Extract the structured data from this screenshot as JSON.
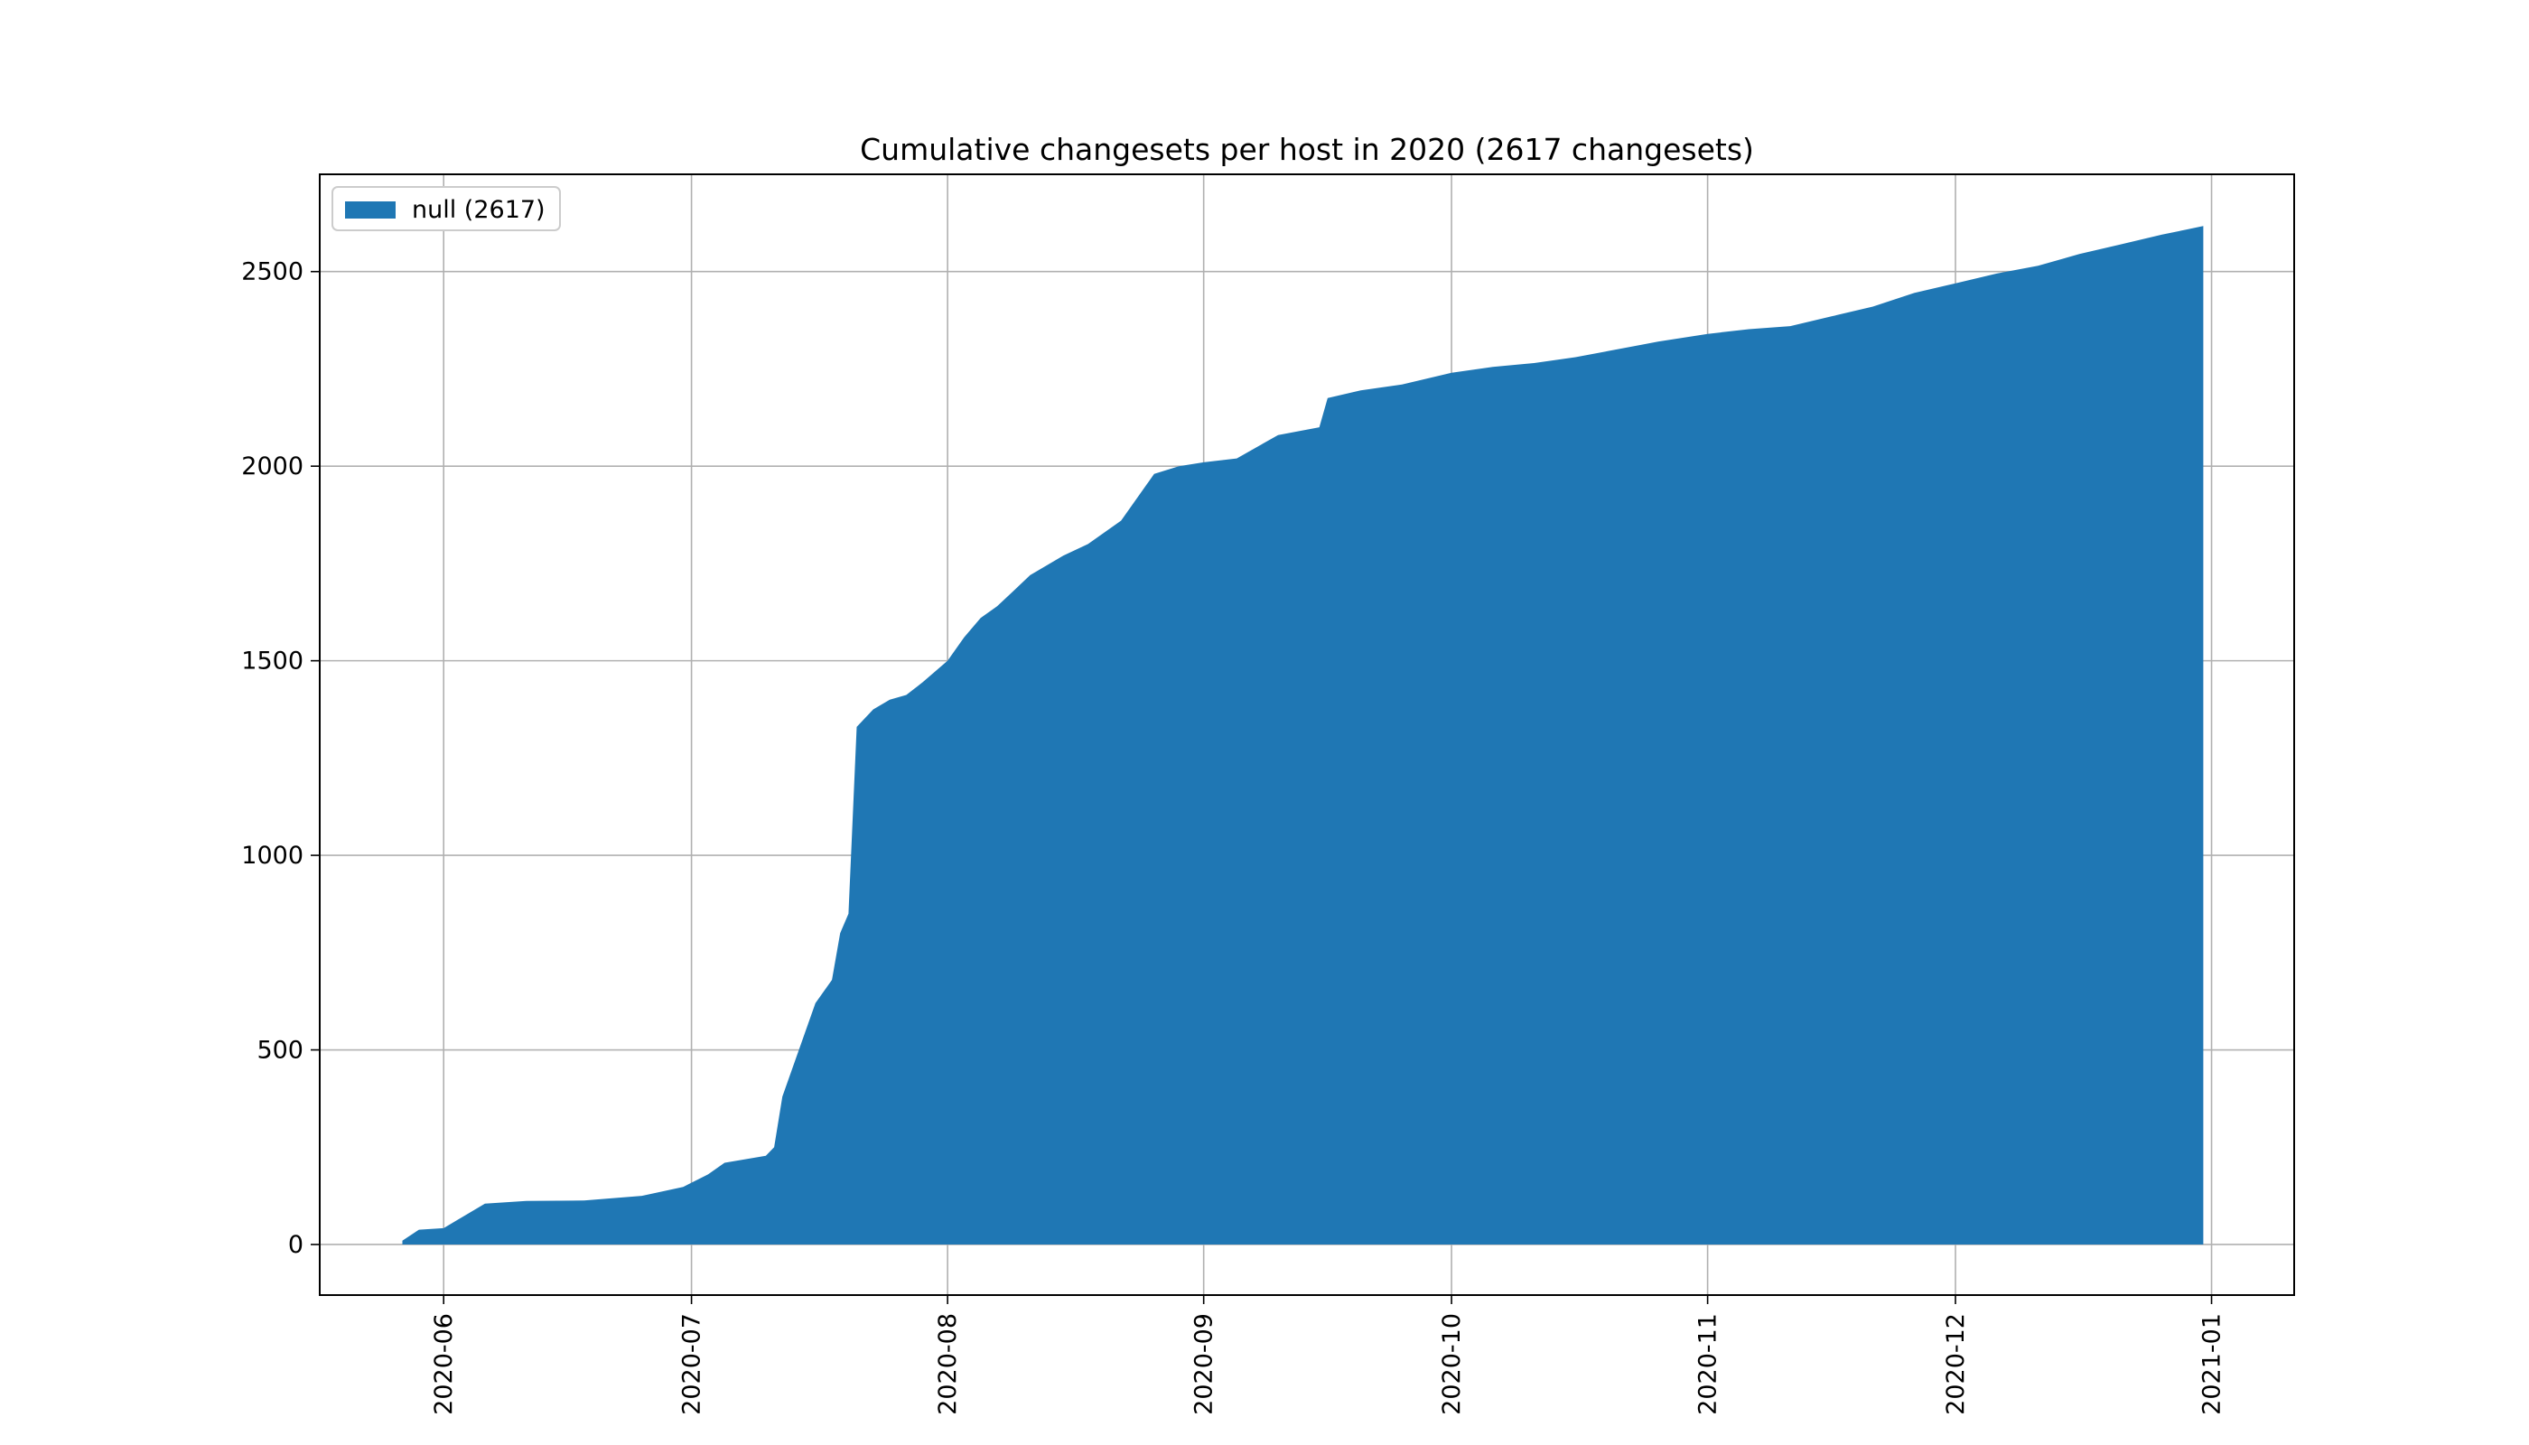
{
  "chart_data": {
    "type": "area",
    "title": "Cumulative changesets per host in 2020 (2617 changesets)",
    "xlabel": "",
    "ylabel": "",
    "xlim": [
      "2020-05-17",
      "2021-01-11"
    ],
    "ylim": [
      -130,
      2750
    ],
    "grid": true,
    "legend_position": "top-left",
    "x_ticks": [
      "2020-06-01",
      "2020-07-01",
      "2020-08-01",
      "2020-09-01",
      "2020-10-01",
      "2020-11-01",
      "2020-12-01",
      "2021-01-01"
    ],
    "x_tick_labels": [
      "2020-06",
      "2020-07",
      "2020-08",
      "2020-09",
      "2020-10",
      "2020-11",
      "2020-12",
      "2021-01"
    ],
    "y_ticks": [
      0,
      500,
      1000,
      1500,
      2000,
      2500
    ],
    "y_tick_labels": [
      "0",
      "500",
      "1000",
      "1500",
      "2000",
      "2500"
    ],
    "series": [
      {
        "name": "null (2617)",
        "color": "#1f77b4",
        "x": [
          "2020-05-27",
          "2020-05-29",
          "2020-06-01",
          "2020-06-06",
          "2020-06-11",
          "2020-06-18",
          "2020-06-25",
          "2020-06-30",
          "2020-07-03",
          "2020-07-05",
          "2020-07-10",
          "2020-07-11",
          "2020-07-12",
          "2020-07-14",
          "2020-07-16",
          "2020-07-18",
          "2020-07-19",
          "2020-07-20",
          "2020-07-21",
          "2020-07-23",
          "2020-07-25",
          "2020-07-27",
          "2020-07-29",
          "2020-08-01",
          "2020-08-03",
          "2020-08-05",
          "2020-08-07",
          "2020-08-09",
          "2020-08-11",
          "2020-08-15",
          "2020-08-18",
          "2020-08-22",
          "2020-08-26",
          "2020-08-29",
          "2020-09-01",
          "2020-09-05",
          "2020-09-10",
          "2020-09-15",
          "2020-09-16",
          "2020-09-20",
          "2020-09-25",
          "2020-10-01",
          "2020-10-06",
          "2020-10-11",
          "2020-10-16",
          "2020-10-21",
          "2020-10-26",
          "2020-11-01",
          "2020-11-06",
          "2020-11-11",
          "2020-11-16",
          "2020-11-21",
          "2020-11-26",
          "2020-12-01",
          "2020-12-06",
          "2020-12-11",
          "2020-12-16",
          "2020-12-21",
          "2020-12-26",
          "2020-12-31"
        ],
        "values": [
          10,
          38,
          42,
          105,
          112,
          113,
          125,
          148,
          180,
          210,
          228,
          250,
          380,
          500,
          620,
          680,
          800,
          850,
          1330,
          1375,
          1400,
          1412,
          1445,
          1500,
          1560,
          1610,
          1640,
          1680,
          1720,
          1770,
          1800,
          1860,
          1980,
          2000,
          2010,
          2020,
          2080,
          2100,
          2175,
          2195,
          2210,
          2240,
          2255,
          2265,
          2280,
          2300,
          2320,
          2340,
          2352,
          2360,
          2385,
          2410,
          2445,
          2470,
          2495,
          2515,
          2545,
          2570,
          2595,
          2617
        ]
      }
    ]
  }
}
